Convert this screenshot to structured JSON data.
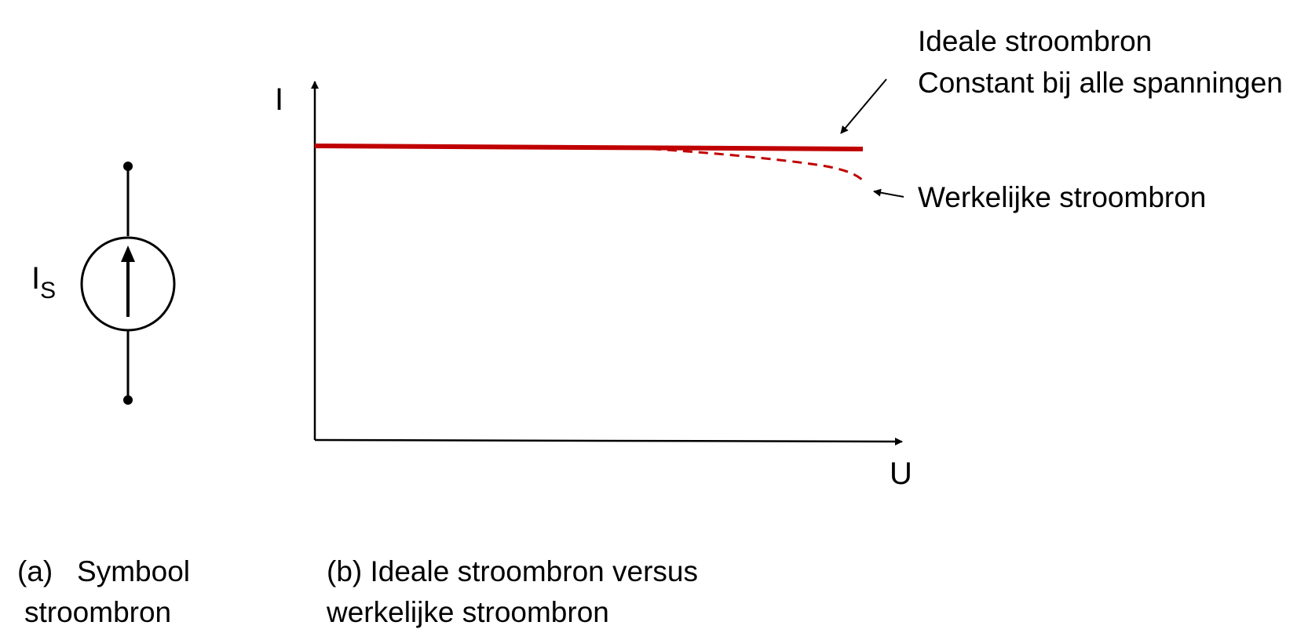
{
  "symbol": {
    "label_main": "I",
    "label_sub": "S",
    "caption_line1": "(a)   Symbool",
    "caption_line2": "stroombron"
  },
  "graph": {
    "y_axis_label": "I",
    "x_axis_label": "U",
    "ideal_label_line1": "Ideale stroombron",
    "ideal_label_line2": "Constant bij alle spanningen",
    "real_label": "Werkelijke stroombron",
    "caption_line1": "(b) Ideale stroombron versus",
    "caption_line2": "werkelijke stroombron",
    "ideal_color": "#C00000",
    "real_color": "#C00000"
  }
}
